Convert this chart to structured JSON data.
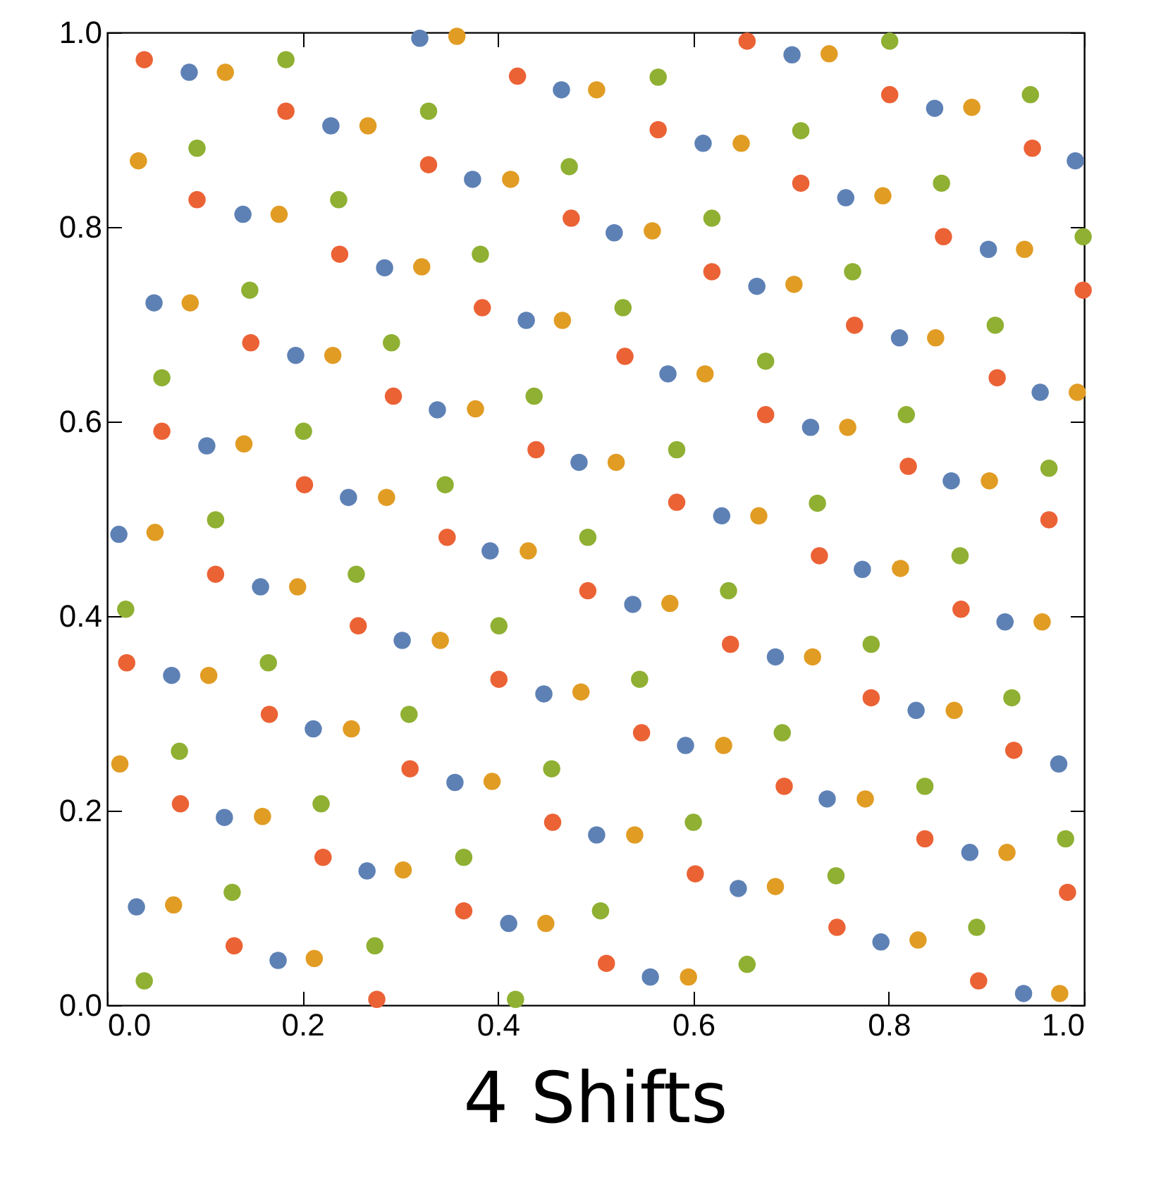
{
  "chart_data": {
    "type": "scatter",
    "title": "4 Shifts",
    "marker": "circle",
    "grid": false,
    "legend": false,
    "xlim": [
      0,
      1
    ],
    "ylim": [
      0,
      1
    ],
    "xticks": [
      {
        "value": 0,
        "label": "0.0"
      },
      {
        "value": 0.2,
        "label": "0.2"
      },
      {
        "value": 0.4,
        "label": "0.4"
      },
      {
        "value": 0.6,
        "label": "0.6"
      },
      {
        "value": 0.8,
        "label": "0.8"
      },
      {
        "value": 1,
        "label": "1.0"
      }
    ],
    "yticks": [
      {
        "value": 0,
        "label": "0.0"
      },
      {
        "value": 0.2,
        "label": "0.2"
      },
      {
        "value": 0.4,
        "label": "0.4"
      },
      {
        "value": 0.6,
        "label": "0.6"
      },
      {
        "value": 0.8,
        "label": "0.8"
      },
      {
        "value": 1,
        "label": "1.0"
      }
    ],
    "series": [
      {
        "color": "#5e81b5",
        "x": [
          0.084,
          0.32,
          0.465,
          0.701,
          0.229,
          0.61,
          0.847,
          0.991,
          0.374,
          0.756,
          0.139,
          0.519,
          0.902,
          0.284,
          0.665,
          0.048,
          0.429,
          0.811,
          0.193,
          0.574,
          0.955,
          0.338,
          0.72,
          0.102,
          0.483,
          0.864,
          0.247,
          0.629,
          0.012,
          0.392,
          0.773,
          0.157,
          0.538,
          0.919,
          0.302,
          0.684,
          0.066,
          0.447,
          0.828,
          0.211,
          0.592,
          0.974,
          0.356,
          0.737,
          0.12,
          0.501,
          0.883,
          0.266,
          0.646,
          0.03,
          0.411,
          0.792,
          0.175,
          0.556,
          0.938
        ],
        "values": [
          0.959,
          0.994,
          0.941,
          0.977,
          0.904,
          0.886,
          0.922,
          0.868,
          0.849,
          0.83,
          0.813,
          0.794,
          0.777,
          0.758,
          0.739,
          0.722,
          0.704,
          0.686,
          0.668,
          0.649,
          0.63,
          0.612,
          0.594,
          0.575,
          0.558,
          0.539,
          0.522,
          0.503,
          0.484,
          0.467,
          0.448,
          0.43,
          0.412,
          0.394,
          0.375,
          0.358,
          0.339,
          0.32,
          0.303,
          0.284,
          0.267,
          0.248,
          0.229,
          0.212,
          0.193,
          0.175,
          0.157,
          0.138,
          0.12,
          0.101,
          0.084,
          0.065,
          0.046,
          0.029,
          0.012
        ]
      },
      {
        "color": "#e19c24",
        "x": [
          0.121,
          0.358,
          0.501,
          0.739,
          0.267,
          0.649,
          0.885,
          0.032,
          0.413,
          0.794,
          0.176,
          0.558,
          0.939,
          0.322,
          0.703,
          0.085,
          0.466,
          0.848,
          0.231,
          0.612,
          0.993,
          0.377,
          0.758,
          0.14,
          0.521,
          0.903,
          0.286,
          0.667,
          0.049,
          0.431,
          0.812,
          0.195,
          0.576,
          0.957,
          0.341,
          0.722,
          0.104,
          0.485,
          0.867,
          0.25,
          0.631,
          0.013,
          0.394,
          0.776,
          0.159,
          0.54,
          0.921,
          0.303,
          0.684,
          0.068,
          0.449,
          0.83,
          0.212,
          0.595,
          0.975
        ],
        "values": [
          0.959,
          0.996,
          0.941,
          0.978,
          0.904,
          0.886,
          0.923,
          0.868,
          0.849,
          0.832,
          0.813,
          0.796,
          0.777,
          0.759,
          0.741,
          0.722,
          0.704,
          0.686,
          0.668,
          0.649,
          0.63,
          0.613,
          0.594,
          0.577,
          0.558,
          0.539,
          0.522,
          0.503,
          0.486,
          0.467,
          0.449,
          0.43,
          0.413,
          0.394,
          0.375,
          0.358,
          0.339,
          0.322,
          0.303,
          0.284,
          0.267,
          0.248,
          0.23,
          0.212,
          0.194,
          0.175,
          0.157,
          0.139,
          0.122,
          0.103,
          0.084,
          0.067,
          0.048,
          0.029,
          0.012
        ]
      },
      {
        "color": "#eb6235",
        "x": [
          0.038,
          0.42,
          0.655,
          0.801,
          0.183,
          0.564,
          0.947,
          0.329,
          0.71,
          0.092,
          0.475,
          0.856,
          0.238,
          0.619,
          0.999,
          0.384,
          0.765,
          0.147,
          0.53,
          0.911,
          0.293,
          0.674,
          0.056,
          0.439,
          0.82,
          0.202,
          0.583,
          0.964,
          0.348,
          0.729,
          0.111,
          0.492,
          0.874,
          0.257,
          0.638,
          0.02,
          0.401,
          0.782,
          0.166,
          0.547,
          0.928,
          0.31,
          0.693,
          0.075,
          0.456,
          0.837,
          0.221,
          0.602,
          0.983,
          0.365,
          0.747,
          0.13,
          0.511,
          0.892,
          0.276
        ],
        "values": [
          0.972,
          0.955,
          0.991,
          0.936,
          0.919,
          0.9,
          0.881,
          0.864,
          0.845,
          0.828,
          0.809,
          0.79,
          0.772,
          0.754,
          0.735,
          0.717,
          0.699,
          0.681,
          0.667,
          0.645,
          0.626,
          0.607,
          0.59,
          0.571,
          0.554,
          0.535,
          0.517,
          0.499,
          0.481,
          0.462,
          0.443,
          0.426,
          0.407,
          0.39,
          0.371,
          0.352,
          0.335,
          0.316,
          0.299,
          0.28,
          0.262,
          0.243,
          0.225,
          0.207,
          0.188,
          0.171,
          0.152,
          0.135,
          0.116,
          0.097,
          0.08,
          0.061,
          0.043,
          0.025,
          0.006
        ]
      },
      {
        "color": "#8fb032",
        "x": [
          0.183,
          0.801,
          0.564,
          0.945,
          0.329,
          0.092,
          0.71,
          0.473,
          0.854,
          0.237,
          0.619,
          0.999,
          0.382,
          0.763,
          0.146,
          0.528,
          0.909,
          0.291,
          0.674,
          0.056,
          0.437,
          0.818,
          0.201,
          0.583,
          0.964,
          0.346,
          0.727,
          0.111,
          0.492,
          0.873,
          0.019,
          0.255,
          0.636,
          0.401,
          0.782,
          0.165,
          0.545,
          0.926,
          0.309,
          0.691,
          0.074,
          0.455,
          0.837,
          0.219,
          0.6,
          0.981,
          0.365,
          0.746,
          0.128,
          0.505,
          0.89,
          0.274,
          0.655,
          0.038,
          0.418
        ],
        "values": [
          0.972,
          0.991,
          0.954,
          0.936,
          0.919,
          0.881,
          0.899,
          0.862,
          0.845,
          0.828,
          0.809,
          0.79,
          0.772,
          0.754,
          0.735,
          0.717,
          0.699,
          0.681,
          0.662,
          0.645,
          0.626,
          0.607,
          0.59,
          0.571,
          0.552,
          0.535,
          0.516,
          0.499,
          0.481,
          0.462,
          0.407,
          0.443,
          0.426,
          0.39,
          0.371,
          0.352,
          0.335,
          0.316,
          0.299,
          0.28,
          0.261,
          0.243,
          0.225,
          0.207,
          0.188,
          0.171,
          0.152,
          0.133,
          0.116,
          0.097,
          0.08,
          0.061,
          0.042,
          0.025,
          0.006
        ]
      }
    ]
  }
}
